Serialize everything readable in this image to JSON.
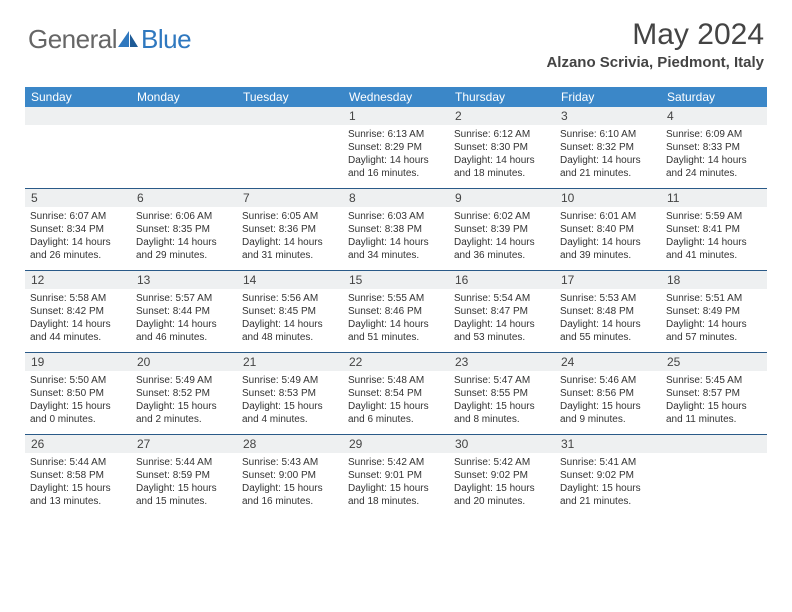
{
  "logo": {
    "general": "General",
    "blue": "Blue"
  },
  "title": "May 2024",
  "location": "Alzano Scrivia, Piedmont, Italy",
  "colors": {
    "header_bg": "#3b87c8",
    "daynum_bg": "#eef0f1",
    "border": "#2a5a88",
    "text": "#333333"
  },
  "daysOfWeek": [
    "Sunday",
    "Monday",
    "Tuesday",
    "Wednesday",
    "Thursday",
    "Friday",
    "Saturday"
  ],
  "weeks": [
    [
      {
        "n": "",
        "sr": "",
        "ss": "",
        "dl": ""
      },
      {
        "n": "",
        "sr": "",
        "ss": "",
        "dl": ""
      },
      {
        "n": "",
        "sr": "",
        "ss": "",
        "dl": ""
      },
      {
        "n": "1",
        "sr": "6:13 AM",
        "ss": "8:29 PM",
        "dl": "14 hours and 16 minutes."
      },
      {
        "n": "2",
        "sr": "6:12 AM",
        "ss": "8:30 PM",
        "dl": "14 hours and 18 minutes."
      },
      {
        "n": "3",
        "sr": "6:10 AM",
        "ss": "8:32 PM",
        "dl": "14 hours and 21 minutes."
      },
      {
        "n": "4",
        "sr": "6:09 AM",
        "ss": "8:33 PM",
        "dl": "14 hours and 24 minutes."
      }
    ],
    [
      {
        "n": "5",
        "sr": "6:07 AM",
        "ss": "8:34 PM",
        "dl": "14 hours and 26 minutes."
      },
      {
        "n": "6",
        "sr": "6:06 AM",
        "ss": "8:35 PM",
        "dl": "14 hours and 29 minutes."
      },
      {
        "n": "7",
        "sr": "6:05 AM",
        "ss": "8:36 PM",
        "dl": "14 hours and 31 minutes."
      },
      {
        "n": "8",
        "sr": "6:03 AM",
        "ss": "8:38 PM",
        "dl": "14 hours and 34 minutes."
      },
      {
        "n": "9",
        "sr": "6:02 AM",
        "ss": "8:39 PM",
        "dl": "14 hours and 36 minutes."
      },
      {
        "n": "10",
        "sr": "6:01 AM",
        "ss": "8:40 PM",
        "dl": "14 hours and 39 minutes."
      },
      {
        "n": "11",
        "sr": "5:59 AM",
        "ss": "8:41 PM",
        "dl": "14 hours and 41 minutes."
      }
    ],
    [
      {
        "n": "12",
        "sr": "5:58 AM",
        "ss": "8:42 PM",
        "dl": "14 hours and 44 minutes."
      },
      {
        "n": "13",
        "sr": "5:57 AM",
        "ss": "8:44 PM",
        "dl": "14 hours and 46 minutes."
      },
      {
        "n": "14",
        "sr": "5:56 AM",
        "ss": "8:45 PM",
        "dl": "14 hours and 48 minutes."
      },
      {
        "n": "15",
        "sr": "5:55 AM",
        "ss": "8:46 PM",
        "dl": "14 hours and 51 minutes."
      },
      {
        "n": "16",
        "sr": "5:54 AM",
        "ss": "8:47 PM",
        "dl": "14 hours and 53 minutes."
      },
      {
        "n": "17",
        "sr": "5:53 AM",
        "ss": "8:48 PM",
        "dl": "14 hours and 55 minutes."
      },
      {
        "n": "18",
        "sr": "5:51 AM",
        "ss": "8:49 PM",
        "dl": "14 hours and 57 minutes."
      }
    ],
    [
      {
        "n": "19",
        "sr": "5:50 AM",
        "ss": "8:50 PM",
        "dl": "15 hours and 0 minutes."
      },
      {
        "n": "20",
        "sr": "5:49 AM",
        "ss": "8:52 PM",
        "dl": "15 hours and 2 minutes."
      },
      {
        "n": "21",
        "sr": "5:49 AM",
        "ss": "8:53 PM",
        "dl": "15 hours and 4 minutes."
      },
      {
        "n": "22",
        "sr": "5:48 AM",
        "ss": "8:54 PM",
        "dl": "15 hours and 6 minutes."
      },
      {
        "n": "23",
        "sr": "5:47 AM",
        "ss": "8:55 PM",
        "dl": "15 hours and 8 minutes."
      },
      {
        "n": "24",
        "sr": "5:46 AM",
        "ss": "8:56 PM",
        "dl": "15 hours and 9 minutes."
      },
      {
        "n": "25",
        "sr": "5:45 AM",
        "ss": "8:57 PM",
        "dl": "15 hours and 11 minutes."
      }
    ],
    [
      {
        "n": "26",
        "sr": "5:44 AM",
        "ss": "8:58 PM",
        "dl": "15 hours and 13 minutes."
      },
      {
        "n": "27",
        "sr": "5:44 AM",
        "ss": "8:59 PM",
        "dl": "15 hours and 15 minutes."
      },
      {
        "n": "28",
        "sr": "5:43 AM",
        "ss": "9:00 PM",
        "dl": "15 hours and 16 minutes."
      },
      {
        "n": "29",
        "sr": "5:42 AM",
        "ss": "9:01 PM",
        "dl": "15 hours and 18 minutes."
      },
      {
        "n": "30",
        "sr": "5:42 AM",
        "ss": "9:02 PM",
        "dl": "15 hours and 20 minutes."
      },
      {
        "n": "31",
        "sr": "5:41 AM",
        "ss": "9:02 PM",
        "dl": "15 hours and 21 minutes."
      },
      {
        "n": "",
        "sr": "",
        "ss": "",
        "dl": ""
      }
    ]
  ],
  "labels": {
    "sunrise": "Sunrise:",
    "sunset": "Sunset:",
    "daylight": "Daylight:"
  }
}
